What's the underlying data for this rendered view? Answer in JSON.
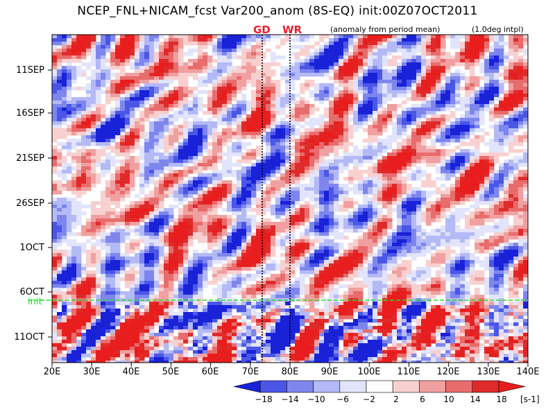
{
  "chart_data": {
    "type": "heatmap",
    "title": "NCEP_FNL+NICAM_fcst Var200_anom (8S-EQ) init:00Z07OCT2011",
    "subtitle_left": "(anomaly from period mean)",
    "subtitle_right": "(1.0deg intpl)",
    "x_ticks": [
      "20E",
      "30E",
      "40E",
      "50E",
      "60E",
      "70E",
      "80E",
      "90E",
      "100E",
      "110E",
      "120E",
      "130E",
      "140E"
    ],
    "y_ticks": [
      "11SEP",
      "16SEP",
      "21SEP",
      "26SEP",
      "1OCT",
      "6OCT",
      "11OCT"
    ],
    "xlim": [
      20,
      140
    ],
    "init_line_label": "init",
    "markers": [
      {
        "label": "GD",
        "lon": 73
      },
      {
        "label": "WR",
        "lon": 80
      }
    ],
    "colorbar": {
      "levels": [
        "−18",
        "−14",
        "−10",
        "−6",
        "−2",
        "2",
        "6",
        "10",
        "14",
        "18"
      ],
      "colors": [
        "#1a22d8",
        "#4a56e6",
        "#7e86ee",
        "#b4baf6",
        "#e2e4fb",
        "#ffffff",
        "#f8d0d0",
        "#f0a0a0",
        "#e86c6c",
        "#e02a2a",
        "#e81e1e"
      ],
      "unit": "[s-1]"
    },
    "annotation_colors": {
      "init_line": "#22dd22",
      "marker_label": "#e8202a"
    }
  }
}
